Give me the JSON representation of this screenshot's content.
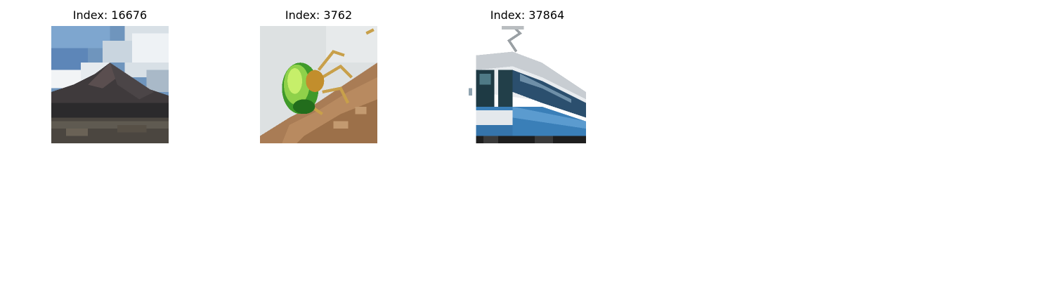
{
  "figure": {
    "panels": [
      {
        "title": "Index: 16676",
        "image_subject": "mountain"
      },
      {
        "title": "Index: 3762",
        "image_subject": "beetle"
      },
      {
        "title": "Index: 37864",
        "image_subject": "tram"
      }
    ]
  }
}
